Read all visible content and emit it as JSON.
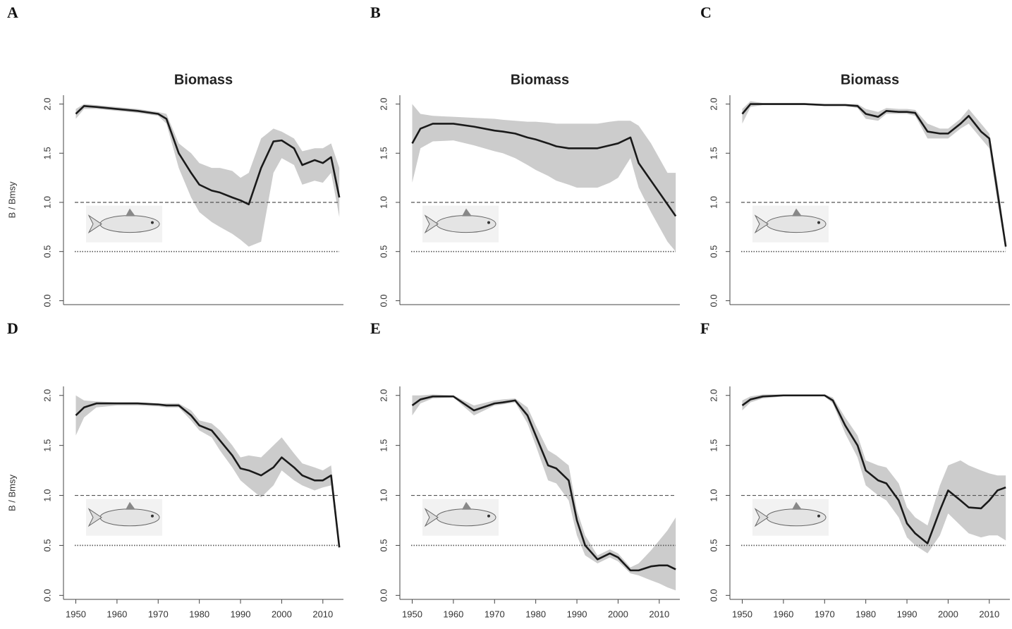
{
  "chart_data": [
    {
      "type": "line",
      "label": "A",
      "title": "Biomass",
      "ylabel": "B / Bmsy",
      "x": [
        1950,
        1952,
        1955,
        1960,
        1965,
        1970,
        1972,
        1975,
        1978,
        1980,
        1983,
        1985,
        1988,
        1990,
        1992,
        1995,
        1998,
        2000,
        2003,
        2005,
        2008,
        2010,
        2012,
        2014
      ],
      "series": [
        {
          "color": "#1a1a1a",
          "values": [
            1.9,
            1.98,
            1.97,
            1.95,
            1.93,
            1.9,
            1.85,
            1.5,
            1.3,
            1.18,
            1.12,
            1.1,
            1.05,
            1.02,
            0.98,
            1.35,
            1.62,
            1.63,
            1.55,
            1.38,
            1.43,
            1.4,
            1.46,
            1.05
          ]
        }
      ],
      "band": {
        "color": "#cccccc",
        "lower": [
          1.85,
          1.95,
          1.95,
          1.93,
          1.91,
          1.88,
          1.8,
          1.35,
          1.05,
          0.9,
          0.8,
          0.75,
          0.68,
          0.62,
          0.55,
          0.6,
          1.3,
          1.45,
          1.38,
          1.18,
          1.22,
          1.2,
          1.3,
          0.85
        ],
        "upper": [
          1.95,
          2.0,
          1.99,
          1.97,
          1.95,
          1.92,
          1.9,
          1.6,
          1.5,
          1.4,
          1.35,
          1.35,
          1.32,
          1.25,
          1.3,
          1.65,
          1.75,
          1.72,
          1.65,
          1.52,
          1.55,
          1.55,
          1.6,
          1.35
        ]
      },
      "hlines": [
        {
          "value": 1,
          "style": "dashed"
        },
        {
          "value": 0.5,
          "style": "dotted"
        }
      ],
      "xlim": [
        1947,
        2015
      ],
      "ylim": [
        -0.04,
        2.09
      ],
      "yticks": [
        {
          "value": 0,
          "label": "0.0"
        },
        {
          "value": 0.5,
          "label": "0.5"
        },
        {
          "value": 1,
          "label": "1.0"
        },
        {
          "value": 1.5,
          "label": "1.5"
        },
        {
          "value": 2,
          "label": "2.0"
        }
      ]
    },
    {
      "type": "line",
      "label": "B",
      "title": "Biomass",
      "x": [
        1950,
        1952,
        1955,
        1960,
        1965,
        1970,
        1972,
        1975,
        1978,
        1980,
        1983,
        1985,
        1988,
        1990,
        1992,
        1995,
        1998,
        2000,
        2003,
        2005,
        2008,
        2010,
        2012,
        2014
      ],
      "series": [
        {
          "color": "#1a1a1a",
          "values": [
            1.6,
            1.75,
            1.8,
            1.8,
            1.77,
            1.73,
            1.72,
            1.7,
            1.66,
            1.64,
            1.6,
            1.57,
            1.55,
            1.55,
            1.55,
            1.55,
            1.58,
            1.6,
            1.66,
            1.4,
            1.22,
            1.1,
            0.98,
            0.86
          ]
        }
      ],
      "band": {
        "color": "#cccccc",
        "lower": [
          1.2,
          1.55,
          1.62,
          1.63,
          1.58,
          1.52,
          1.5,
          1.45,
          1.38,
          1.33,
          1.27,
          1.22,
          1.18,
          1.15,
          1.15,
          1.15,
          1.2,
          1.25,
          1.45,
          1.15,
          0.9,
          0.75,
          0.6,
          0.5
        ],
        "upper": [
          2.0,
          1.9,
          1.88,
          1.87,
          1.86,
          1.85,
          1.84,
          1.83,
          1.82,
          1.82,
          1.81,
          1.8,
          1.8,
          1.8,
          1.8,
          1.8,
          1.82,
          1.83,
          1.83,
          1.78,
          1.6,
          1.45,
          1.3,
          1.3
        ]
      },
      "hlines": [
        {
          "value": 1,
          "style": "dashed"
        },
        {
          "value": 0.5,
          "style": "dotted"
        }
      ],
      "xlim": [
        1947,
        2015
      ],
      "ylim": [
        -0.04,
        2.09
      ],
      "yticks": [
        {
          "value": 0,
          "label": "0.0"
        },
        {
          "value": 0.5,
          "label": "0.5"
        },
        {
          "value": 1,
          "label": "1.0"
        },
        {
          "value": 1.5,
          "label": "1.5"
        },
        {
          "value": 2,
          "label": "2.0"
        }
      ]
    },
    {
      "type": "line",
      "label": "C",
      "title": "Biomass",
      "x": [
        1950,
        1952,
        1955,
        1960,
        1965,
        1970,
        1972,
        1975,
        1978,
        1980,
        1983,
        1985,
        1988,
        1990,
        1992,
        1995,
        1998,
        2000,
        2003,
        2005,
        2008,
        2010,
        2012,
        2014
      ],
      "series": [
        {
          "color": "#1a1a1a",
          "values": [
            1.9,
            2.0,
            2.0,
            2.0,
            2.0,
            1.99,
            1.99,
            1.99,
            1.98,
            1.9,
            1.87,
            1.93,
            1.92,
            1.92,
            1.91,
            1.72,
            1.7,
            1.7,
            1.8,
            1.88,
            1.72,
            1.65,
            1.1,
            0.55
          ]
        }
      ],
      "band": {
        "color": "#cccccc",
        "lower": [
          1.8,
          1.97,
          1.99,
          1.99,
          1.99,
          1.98,
          1.98,
          1.98,
          1.96,
          1.85,
          1.83,
          1.9,
          1.9,
          1.9,
          1.88,
          1.65,
          1.65,
          1.65,
          1.75,
          1.8,
          1.65,
          1.55,
          1.0,
          0.5
        ],
        "upper": [
          1.95,
          2.03,
          2.01,
          2.01,
          2.01,
          2.0,
          2.0,
          2.0,
          2.0,
          1.95,
          1.92,
          1.96,
          1.95,
          1.95,
          1.94,
          1.8,
          1.75,
          1.75,
          1.85,
          1.95,
          1.8,
          1.7,
          1.2,
          0.6
        ]
      },
      "hlines": [
        {
          "value": 1,
          "style": "dashed"
        },
        {
          "value": 0.5,
          "style": "dotted"
        }
      ],
      "xlim": [
        1947,
        2015
      ],
      "ylim": [
        -0.04,
        2.09
      ],
      "yticks": [
        {
          "value": 0,
          "label": "0.0"
        },
        {
          "value": 0.5,
          "label": "0.5"
        },
        {
          "value": 1,
          "label": "1.0"
        },
        {
          "value": 1.5,
          "label": "1.5"
        },
        {
          "value": 2,
          "label": "2.0"
        }
      ]
    },
    {
      "type": "line",
      "label": "D",
      "ylabel": "B / Bmsy",
      "x": [
        1950,
        1952,
        1955,
        1960,
        1965,
        1970,
        1972,
        1975,
        1978,
        1980,
        1983,
        1985,
        1988,
        1990,
        1992,
        1995,
        1998,
        2000,
        2003,
        2005,
        2008,
        2010,
        2012,
        2014
      ],
      "series": [
        {
          "color": "#1a1a1a",
          "values": [
            1.8,
            1.88,
            1.92,
            1.92,
            1.92,
            1.91,
            1.9,
            1.9,
            1.8,
            1.7,
            1.65,
            1.55,
            1.4,
            1.27,
            1.25,
            1.2,
            1.28,
            1.38,
            1.28,
            1.2,
            1.15,
            1.15,
            1.2,
            0.48
          ]
        }
      ],
      "band": {
        "color": "#cccccc",
        "lower": [
          1.6,
          1.78,
          1.88,
          1.9,
          1.9,
          1.89,
          1.88,
          1.88,
          1.75,
          1.65,
          1.58,
          1.45,
          1.28,
          1.15,
          1.08,
          0.98,
          1.1,
          1.25,
          1.15,
          1.1,
          1.05,
          1.08,
          1.1,
          0.45
        ],
        "upper": [
          2.0,
          1.95,
          1.94,
          1.93,
          1.93,
          1.92,
          1.92,
          1.92,
          1.85,
          1.75,
          1.72,
          1.65,
          1.5,
          1.38,
          1.4,
          1.38,
          1.5,
          1.58,
          1.42,
          1.32,
          1.28,
          1.25,
          1.3,
          0.55
        ]
      },
      "hlines": [
        {
          "value": 1,
          "style": "dashed"
        },
        {
          "value": 0.5,
          "style": "dotted"
        }
      ],
      "xlim": [
        1947,
        2015
      ],
      "ylim": [
        -0.04,
        2.09
      ],
      "xticks": [
        1950,
        1960,
        1970,
        1980,
        1990,
        2000,
        2010
      ],
      "yticks": [
        {
          "value": 0,
          "label": "0.0"
        },
        {
          "value": 0.5,
          "label": "0.5"
        },
        {
          "value": 1,
          "label": "1.0"
        },
        {
          "value": 1.5,
          "label": "1.5"
        },
        {
          "value": 2,
          "label": "2.0"
        }
      ]
    },
    {
      "type": "line",
      "label": "E",
      "x": [
        1950,
        1952,
        1955,
        1960,
        1965,
        1970,
        1972,
        1975,
        1978,
        1980,
        1983,
        1985,
        1988,
        1990,
        1992,
        1995,
        1998,
        2000,
        2003,
        2005,
        2008,
        2010,
        2012,
        2014
      ],
      "series": [
        {
          "color": "#1a1a1a",
          "values": [
            1.9,
            1.96,
            1.99,
            1.99,
            1.85,
            1.92,
            1.93,
            1.95,
            1.8,
            1.6,
            1.3,
            1.27,
            1.15,
            0.75,
            0.5,
            0.36,
            0.42,
            0.38,
            0.25,
            0.25,
            0.29,
            0.3,
            0.3,
            0.26
          ]
        }
      ],
      "band": {
        "color": "#cccccc",
        "lower": [
          1.8,
          1.92,
          1.97,
          1.98,
          1.8,
          1.9,
          1.91,
          1.93,
          1.72,
          1.5,
          1.15,
          1.12,
          0.95,
          0.6,
          0.4,
          0.32,
          0.38,
          0.34,
          0.22,
          0.2,
          0.15,
          0.12,
          0.08,
          0.05
        ],
        "upper": [
          2.0,
          2.0,
          2.01,
          2.0,
          1.9,
          1.95,
          1.96,
          1.97,
          1.88,
          1.7,
          1.45,
          1.4,
          1.3,
          0.85,
          0.6,
          0.4,
          0.46,
          0.42,
          0.28,
          0.32,
          0.45,
          0.55,
          0.65,
          0.78
        ]
      },
      "hlines": [
        {
          "value": 1,
          "style": "dashed"
        },
        {
          "value": 0.5,
          "style": "dotted"
        }
      ],
      "xlim": [
        1947,
        2015
      ],
      "ylim": [
        -0.04,
        2.09
      ],
      "xticks": [
        1950,
        1960,
        1970,
        1980,
        1990,
        2000,
        2010
      ],
      "yticks": [
        {
          "value": 0,
          "label": "0.0"
        },
        {
          "value": 0.5,
          "label": "0.5"
        },
        {
          "value": 1,
          "label": "1.0"
        },
        {
          "value": 1.5,
          "label": "1.5"
        },
        {
          "value": 2,
          "label": "2.0"
        }
      ]
    },
    {
      "type": "line",
      "label": "F",
      "x": [
        1950,
        1952,
        1955,
        1960,
        1965,
        1970,
        1972,
        1975,
        1978,
        1980,
        1983,
        1985,
        1988,
        1990,
        1992,
        1995,
        1998,
        2000,
        2003,
        2005,
        2008,
        2010,
        2012,
        2014
      ],
      "series": [
        {
          "color": "#1a1a1a",
          "values": [
            1.9,
            1.96,
            1.99,
            2.0,
            2.0,
            2.0,
            1.95,
            1.7,
            1.5,
            1.25,
            1.15,
            1.12,
            0.95,
            0.72,
            0.62,
            0.52,
            0.85,
            1.05,
            0.95,
            0.88,
            0.87,
            0.95,
            1.05,
            1.08
          ]
        }
      ],
      "band": {
        "color": "#cccccc",
        "lower": [
          1.85,
          1.93,
          1.97,
          1.99,
          1.99,
          1.99,
          1.92,
          1.62,
          1.38,
          1.1,
          1.0,
          0.95,
          0.78,
          0.58,
          0.5,
          0.42,
          0.6,
          0.82,
          0.7,
          0.62,
          0.58,
          0.6,
          0.6,
          0.55
        ],
        "upper": [
          1.95,
          1.99,
          2.01,
          2.01,
          2.01,
          2.01,
          1.98,
          1.78,
          1.6,
          1.35,
          1.3,
          1.28,
          1.12,
          0.88,
          0.78,
          0.7,
          1.1,
          1.3,
          1.35,
          1.3,
          1.25,
          1.22,
          1.2,
          1.2
        ]
      },
      "hlines": [
        {
          "value": 1,
          "style": "dashed"
        },
        {
          "value": 0.5,
          "style": "dotted"
        }
      ],
      "xlim": [
        1947,
        2015
      ],
      "ylim": [
        -0.04,
        2.09
      ],
      "xticks": [
        1950,
        1960,
        1970,
        1980,
        1990,
        2000,
        2010
      ],
      "yticks": [
        {
          "value": 0,
          "label": "0.0"
        },
        {
          "value": 0.5,
          "label": "0.5"
        },
        {
          "value": 1,
          "label": "1.0"
        },
        {
          "value": 1.5,
          "label": "1.5"
        },
        {
          "value": 2,
          "label": "2.0"
        }
      ]
    }
  ]
}
